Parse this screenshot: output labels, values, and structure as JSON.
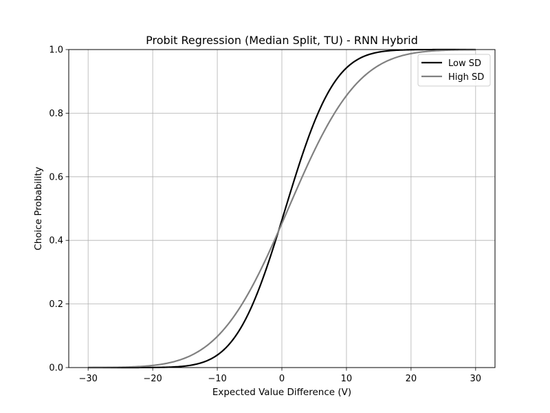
{
  "chart_data": {
    "type": "line",
    "title": "Probit Regression (Median Split, TU) - RNN Hybrid",
    "xlabel": "Expected Value Difference (V)",
    "ylabel": "Choice Probability",
    "xlim": [
      -33,
      33
    ],
    "ylim": [
      0,
      1
    ],
    "x_ticks": [
      -30,
      -20,
      -10,
      0,
      10,
      20,
      30
    ],
    "x_tick_labels": [
      "−30",
      "−20",
      "−10",
      "0",
      "10",
      "20",
      "30"
    ],
    "y_ticks": [
      0,
      0.2,
      0.4,
      0.6,
      0.8,
      1.0
    ],
    "y_tick_labels": [
      "0.0",
      "0.2",
      "0.4",
      "0.6",
      "0.8",
      "1.0"
    ],
    "grid": true,
    "legend_position": "top-right",
    "x_range": [
      -30,
      30
    ],
    "series": [
      {
        "name": "Low SD",
        "color": "#000000",
        "x": [
          -30,
          -25,
          -20,
          -15,
          -12,
          -10,
          -8,
          -6,
          -4,
          -2,
          0,
          2,
          4,
          6,
          8,
          10,
          12,
          15,
          20,
          25,
          30
        ],
        "y": [
          0.0,
          0.0,
          0.0003,
          0.009,
          0.027,
          0.052,
          0.094,
          0.16,
          0.25,
          0.36,
          0.48,
          0.6,
          0.71,
          0.8,
          0.875,
          0.93,
          0.96,
          0.985,
          0.998,
          1.0,
          1.0
        ],
        "probit_mean": 0.55,
        "probit_sd": 6.0
      },
      {
        "name": "High SD",
        "color": "#808080",
        "x": [
          -30,
          -25,
          -20,
          -15,
          -12,
          -10,
          -8,
          -6,
          -4,
          -2,
          0,
          2,
          4,
          6,
          8,
          10,
          12,
          15,
          20,
          25,
          30
        ],
        "y": [
          0.0003,
          0.0016,
          0.0069,
          0.032,
          0.066,
          0.103,
          0.152,
          0.213,
          0.286,
          0.368,
          0.456,
          0.545,
          0.631,
          0.711,
          0.781,
          0.84,
          0.887,
          0.937,
          0.982,
          0.996,
          0.9993
        ],
        "probit_mean": 1.0,
        "probit_sd": 8.5
      }
    ]
  }
}
